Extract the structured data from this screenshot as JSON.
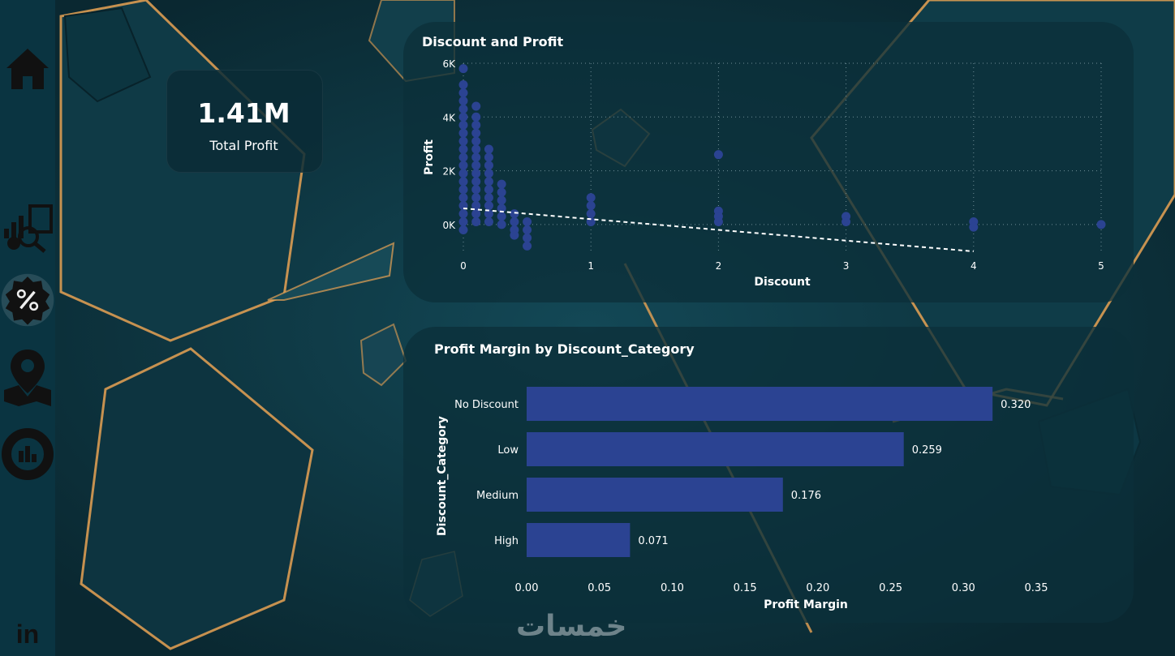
{
  "nav": {
    "items": [
      "home-icon",
      "analytics-icon",
      "discount-icon",
      "map-icon",
      "donut-chart-icon"
    ],
    "footer_icon": "linkedin-icon",
    "footer_label": "in"
  },
  "kpi": {
    "value": "1.41M",
    "label": "Total Profit"
  },
  "watermark": "خمسات",
  "colors": {
    "accent": "#2b4392",
    "background": "#0b2a33",
    "card": "#0c303a",
    "gold": "#e8a254"
  },
  "chart_data": [
    {
      "type": "scatter",
      "title": "Discount and Profit",
      "xlabel": "Discount",
      "ylabel": "Profit",
      "xlim": [
        0,
        5
      ],
      "ylim": [
        -1000,
        6000
      ],
      "xticks": [
        "0",
        "1",
        "2",
        "3",
        "4",
        "5"
      ],
      "yticks": [
        "0K",
        "2K",
        "4K",
        "6K"
      ],
      "ytick_values": [
        0,
        2000,
        4000,
        6000
      ],
      "grid": true,
      "trendline": {
        "x": [
          0,
          4
        ],
        "y": [
          600,
          -1000
        ]
      },
      "points": [
        [
          0,
          5800
        ],
        [
          0,
          5200
        ],
        [
          0,
          4900
        ],
        [
          0,
          4600
        ],
        [
          0,
          4300
        ],
        [
          0,
          4000
        ],
        [
          0,
          3700
        ],
        [
          0,
          3400
        ],
        [
          0,
          3100
        ],
        [
          0,
          2800
        ],
        [
          0,
          2500
        ],
        [
          0,
          2200
        ],
        [
          0,
          1900
        ],
        [
          0,
          1600
        ],
        [
          0,
          1300
        ],
        [
          0,
          1000
        ],
        [
          0,
          700
        ],
        [
          0,
          400
        ],
        [
          0,
          100
        ],
        [
          0,
          -200
        ],
        [
          0.1,
          4400
        ],
        [
          0.1,
          4000
        ],
        [
          0.1,
          3700
        ],
        [
          0.1,
          3400
        ],
        [
          0.1,
          3100
        ],
        [
          0.1,
          2800
        ],
        [
          0.1,
          2500
        ],
        [
          0.1,
          2200
        ],
        [
          0.1,
          1900
        ],
        [
          0.1,
          1600
        ],
        [
          0.1,
          1300
        ],
        [
          0.1,
          1000
        ],
        [
          0.1,
          700
        ],
        [
          0.1,
          400
        ],
        [
          0.1,
          100
        ],
        [
          0.2,
          2800
        ],
        [
          0.2,
          2500
        ],
        [
          0.2,
          2200
        ],
        [
          0.2,
          1900
        ],
        [
          0.2,
          1600
        ],
        [
          0.2,
          1300
        ],
        [
          0.2,
          1000
        ],
        [
          0.2,
          700
        ],
        [
          0.2,
          400
        ],
        [
          0.2,
          100
        ],
        [
          0.3,
          1500
        ],
        [
          0.3,
          1200
        ],
        [
          0.3,
          900
        ],
        [
          0.3,
          600
        ],
        [
          0.3,
          300
        ],
        [
          0.3,
          0
        ],
        [
          0.4,
          400
        ],
        [
          0.4,
          100
        ],
        [
          0.4,
          -200
        ],
        [
          0.4,
          -400
        ],
        [
          0.5,
          100
        ],
        [
          0.5,
          -200
        ],
        [
          0.5,
          -500
        ],
        [
          0.5,
          -800
        ],
        [
          1,
          1000
        ],
        [
          1,
          700
        ],
        [
          1,
          400
        ],
        [
          1,
          100
        ],
        [
          2,
          2600
        ],
        [
          2,
          500
        ],
        [
          2,
          300
        ],
        [
          2,
          100
        ],
        [
          3,
          300
        ],
        [
          3,
          100
        ],
        [
          4,
          100
        ],
        [
          4,
          -100
        ],
        [
          5,
          0
        ]
      ]
    },
    {
      "type": "bar",
      "orientation": "horizontal",
      "title": "Profit Margin by Discount_Category",
      "xlabel": "Profit Margin",
      "ylabel": "Discount_Category",
      "categories": [
        "No Discount",
        "Low",
        "Medium",
        "High"
      ],
      "values": [
        0.32,
        0.259,
        0.176,
        0.071
      ],
      "value_labels": [
        "0.320",
        "0.259",
        "0.176",
        "0.071"
      ],
      "xlim": [
        0,
        0.35
      ],
      "xticks": [
        "0.00",
        "0.05",
        "0.10",
        "0.15",
        "0.20",
        "0.25",
        "0.30",
        "0.35"
      ]
    }
  ]
}
